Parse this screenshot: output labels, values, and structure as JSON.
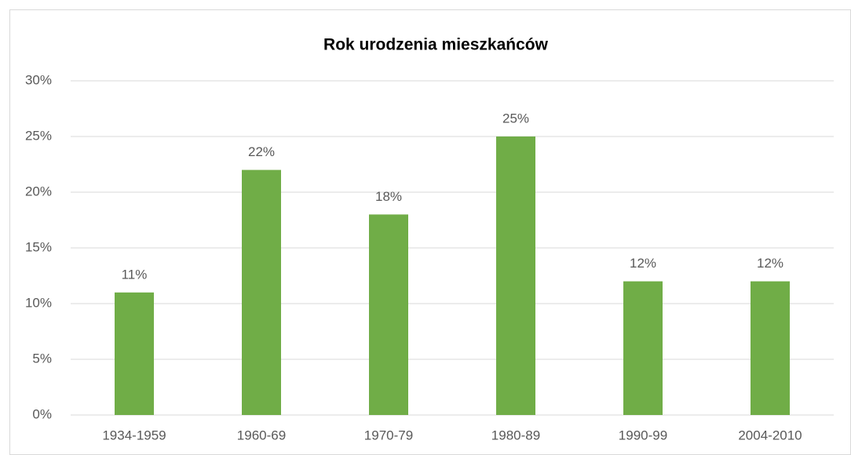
{
  "chart_data": {
    "type": "bar",
    "title": "Rok urodzenia mieszkańców",
    "categories": [
      "1934-1959",
      "1960-69",
      "1970-79",
      "1980-89",
      "1990-99",
      "2004-2010"
    ],
    "values": [
      11,
      22,
      18,
      25,
      12,
      12
    ],
    "value_labels": [
      "11%",
      "22%",
      "18%",
      "25%",
      "12%",
      "12%"
    ],
    "color": "#70ad47",
    "ylim": [
      0,
      30
    ],
    "yticks": [
      {
        "value": 0,
        "label": "0%"
      },
      {
        "value": 5,
        "label": "5%"
      },
      {
        "value": 10,
        "label": "10%"
      },
      {
        "value": 15,
        "label": "15%"
      },
      {
        "value": 20,
        "label": "20%"
      },
      {
        "value": 25,
        "label": "25%"
      },
      {
        "value": 30,
        "label": "30%"
      }
    ],
    "grid": true
  }
}
